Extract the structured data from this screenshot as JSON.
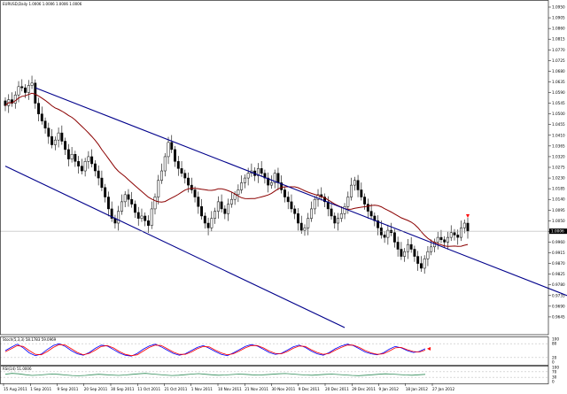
{
  "header": {
    "main_info": "EURUSD,Daily  1.0006 1.0006 1.0006 1.0006",
    "stoch_info": "Stoch(5,3,3) 58.1783 59.0969",
    "rsi_info": "RSI(14) 51.0006"
  },
  "colors": {
    "candle": "#000000",
    "ma": "#8b0000",
    "channel": "#00008b",
    "stoch_main": "#0000ff",
    "stoch_signal": "#ff0000",
    "rsi": "#2e8b57",
    "current_arrow": "#ff0000",
    "grid": "#c0c0c0"
  },
  "chart_data": [
    {
      "type": "candlestick",
      "ylim": [
        0.96,
        1.095
      ],
      "price_ticks": [
        "1.0950",
        "1.0905",
        "1.0860",
        "1.0815",
        "1.0770",
        "1.0725",
        "1.0680",
        "1.0635",
        "1.0590",
        "1.0545",
        "1.0500",
        "1.0455",
        "1.0410",
        "1.0365",
        "1.0320",
        "1.0275",
        "1.0230",
        "1.0185",
        "1.0140",
        "1.0095",
        "1.0050",
        "1.0005",
        "0.9960",
        "0.9915",
        "0.9870",
        "0.9825",
        "0.9780",
        "0.9735",
        "0.9690",
        "0.9645"
      ],
      "current_price": "1.0006",
      "time_labels": [
        "15 Aug 2011",
        "1 Sep 2011",
        "9 Sep 2011",
        "20 Sep 2011",
        "30 Sep 2011",
        "11 Oct 2011",
        "21 Oct 2011",
        "1 Nov 2011",
        "10 Nov 2011",
        "21 Nov 2011",
        "30 Nov 2011",
        "9 Dec 2011",
        "20 Dec 2011",
        "29 Dec 2011",
        "9 Jan 2012",
        "18 Jan 2012",
        "27 Jan 2012"
      ],
      "closes": [
        1.0535,
        1.056,
        1.0545,
        1.058,
        1.0615,
        1.061,
        1.059,
        1.062,
        1.063,
        1.0545,
        1.05,
        1.047,
        1.044,
        1.0405,
        1.037,
        1.039,
        1.042,
        1.0385,
        1.035,
        1.031,
        1.033,
        1.03,
        1.028,
        1.026,
        1.03,
        1.032,
        1.029,
        1.026,
        1.023,
        1.019,
        1.015,
        1.01,
        1.006,
        1.004,
        1.009,
        1.013,
        1.016,
        1.014,
        1.012,
        1.0085,
        1.006,
        1.007,
        1.005,
        1.003,
        1.01,
        1.015,
        1.022,
        1.026,
        1.032,
        1.038,
        1.035,
        1.03,
        1.027,
        1.025,
        1.023,
        1.02,
        1.018,
        1.015,
        1.011,
        1.007,
        1.004,
        1.002,
        1.006,
        1.009,
        1.013,
        1.01,
        1.008,
        1.012,
        1.014,
        1.016,
        1.018,
        1.021,
        1.023,
        1.025,
        1.026,
        1.024,
        1.027,
        1.025,
        1.023,
        1.02,
        1.021,
        1.025,
        1.021,
        1.018,
        1.015,
        1.013,
        1.01,
        1.008,
        1.004,
        1.001,
        1.002,
        1.006,
        1.01,
        1.014,
        1.016,
        1.015,
        1.013,
        1.01,
        1.007,
        1.004,
        1.006,
        1.008,
        1.011,
        1.015,
        1.02,
        1.022,
        1.018,
        1.015,
        1.012,
        1.009,
        1.007,
        1.005,
        1.002,
        0.999,
        0.998,
        1.001,
        1.0,
        0.996,
        0.993,
        0.99,
        0.992,
        0.995,
        0.993,
        0.99,
        0.987,
        0.985,
        0.989,
        0.992,
        0.994,
        0.996,
        0.998,
        0.997,
        0.996,
        0.998,
        1.0,
        0.999,
        0.998,
        1.002,
        1.004,
        1.0006
      ],
      "ma_period": 21,
      "channel": {
        "upper": [
          {
            "bar": 9,
            "price": 1.061
          },
          {
            "bar": 146,
            "price": 0.986
          }
        ],
        "lower": [
          {
            "bar": 0,
            "price": 1.028
          },
          {
            "bar": 102,
            "price": 0.96
          }
        ]
      }
    },
    {
      "type": "line",
      "title": "Stoch(5,3,3)",
      "ylim": [
        0,
        100
      ],
      "levels": [
        80,
        20
      ],
      "axis_ticks": [
        "100",
        "80",
        "20",
        "0"
      ],
      "series": [
        {
          "name": "Main",
          "values": [
            50,
            65,
            78,
            62,
            40,
            28,
            35,
            55,
            72,
            80,
            68,
            50,
            36,
            30,
            42,
            60,
            74,
            70,
            55,
            40,
            30,
            26,
            38,
            56,
            70,
            78,
            66,
            52,
            38,
            30,
            36,
            50,
            64,
            72,
            60,
            46,
            34,
            28,
            40,
            54,
            68,
            76,
            70,
            56,
            42,
            34,
            38,
            52,
            66,
            74,
            64,
            48,
            36,
            30,
            42,
            58,
            70,
            78,
            72,
            58,
            44,
            36,
            32,
            40,
            56,
            68,
            62,
            50,
            42,
            46,
            58
          ]
        },
        {
          "name": "Signal",
          "values": [
            45,
            58,
            72,
            68,
            50,
            34,
            32,
            46,
            64,
            76,
            74,
            58,
            42,
            32,
            38,
            52,
            68,
            72,
            62,
            46,
            34,
            28,
            32,
            48,
            64,
            74,
            72,
            58,
            44,
            34,
            34,
            44,
            58,
            68,
            66,
            52,
            40,
            32,
            36,
            48,
            62,
            72,
            72,
            62,
            48,
            38,
            36,
            46,
            60,
            70,
            68,
            54,
            42,
            34,
            38,
            52,
            64,
            74,
            74,
            64,
            50,
            40,
            34,
            36,
            48,
            62,
            64,
            54,
            46,
            44,
            52
          ]
        }
      ]
    },
    {
      "type": "line",
      "title": "RSI(14)",
      "ylim": [
        0,
        100
      ],
      "levels": [
        70,
        30
      ],
      "axis_ticks": [
        "100",
        "70",
        "30",
        "0"
      ],
      "series": [
        {
          "name": "RSI",
          "values": [
            52,
            58,
            55,
            49,
            44,
            46,
            50,
            54,
            51,
            47,
            43,
            41,
            44,
            48,
            52,
            49,
            46,
            44,
            47,
            51,
            55,
            58,
            54,
            50,
            46,
            43,
            45,
            49,
            53,
            56,
            52,
            48,
            45,
            47,
            50,
            53,
            51,
            48,
            46,
            49,
            52,
            55,
            57,
            54,
            50,
            47,
            45,
            48,
            51,
            53,
            50,
            47,
            44,
            42,
            45,
            48,
            52,
            55,
            53,
            50,
            47,
            45,
            48,
            51
          ]
        }
      ]
    }
  ]
}
